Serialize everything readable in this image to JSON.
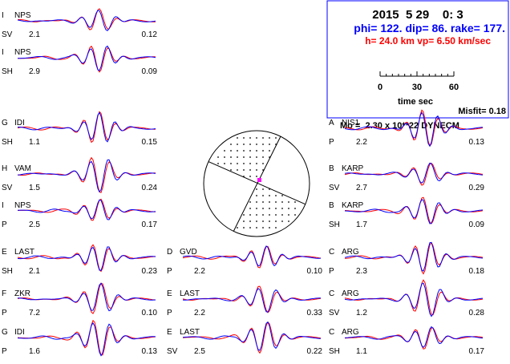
{
  "header": {
    "datetime": "2015  5 29    0: 3",
    "mechanism": "phi= 122. dip= 86. rake= 177.",
    "depth_velocity": "h= 24.0 km  vp= 6.50 km/sec",
    "scale_ticks": [
      "0",
      "30",
      "60"
    ],
    "scale_label": "time sec",
    "misfit": "Misfit= 0.18",
    "moment": "Mo =  2.30 x 10**22 DYNECM"
  },
  "colors": {
    "observed": "#0000ff",
    "synthetic": "#ff0000",
    "beachball_dot": "#ff00ff"
  },
  "traces": [
    {
      "col": 0,
      "row": 0,
      "code": "I",
      "station": "NPS",
      "comp": "SV",
      "amp": "2.1",
      "ratio": "0.12"
    },
    {
      "col": 0,
      "row": 1,
      "code": "I",
      "station": "NPS",
      "comp": "SH",
      "amp": "2.9",
      "ratio": "0.09"
    },
    {
      "col": 0,
      "row": 2,
      "code": "G",
      "station": "IDI",
      "comp": "SH",
      "amp": "1.1",
      "ratio": "0.15"
    },
    {
      "col": 0,
      "row": 3,
      "code": "H",
      "station": "VAM",
      "comp": "SV",
      "amp": "1.5",
      "ratio": "0.24"
    },
    {
      "col": 0,
      "row": 4,
      "code": "I",
      "station": "NPS",
      "comp": "P",
      "amp": "2.5",
      "ratio": "0.17"
    },
    {
      "col": 0,
      "row": 5,
      "code": "E",
      "station": "LAST",
      "comp": "SH",
      "amp": "2.1",
      "ratio": "0.23"
    },
    {
      "col": 0,
      "row": 6,
      "code": "F",
      "station": "ZKR",
      "comp": "P",
      "amp": "7.2",
      "ratio": "0.10"
    },
    {
      "col": 0,
      "row": 7,
      "code": "G",
      "station": "IDI",
      "comp": "P",
      "amp": "1.6",
      "ratio": "0.13"
    },
    {
      "col": 1,
      "row": 5,
      "code": "D",
      "station": "GVD",
      "comp": "P",
      "amp": "2.2",
      "ratio": "0.10"
    },
    {
      "col": 1,
      "row": 6,
      "code": "E",
      "station": "LAST",
      "comp": "P",
      "amp": "2.2",
      "ratio": "0.33"
    },
    {
      "col": 1,
      "row": 7,
      "code": "E",
      "station": "LAST",
      "comp": "SV",
      "amp": "2.5",
      "ratio": "0.22"
    },
    {
      "col": 2,
      "row": 2,
      "code": "A",
      "station": "NIS1",
      "comp": "P",
      "amp": "2.2",
      "ratio": "0.13"
    },
    {
      "col": 2,
      "row": 3,
      "code": "B",
      "station": "KARP",
      "comp": "SV",
      "amp": "2.7",
      "ratio": "0.29"
    },
    {
      "col": 2,
      "row": 4,
      "code": "B",
      "station": "KARP",
      "comp": "SH",
      "amp": "1.7",
      "ratio": "0.09"
    },
    {
      "col": 2,
      "row": 5,
      "code": "C",
      "station": "ARG",
      "comp": "P",
      "amp": "2.3",
      "ratio": "0.18"
    },
    {
      "col": 2,
      "row": 6,
      "code": "C",
      "station": "ARG",
      "comp": "SV",
      "amp": "1.2",
      "ratio": "0.28"
    },
    {
      "col": 2,
      "row": 7,
      "code": "C",
      "station": "ARG",
      "comp": "SH",
      "amp": "1.1",
      "ratio": "0.17"
    }
  ]
}
